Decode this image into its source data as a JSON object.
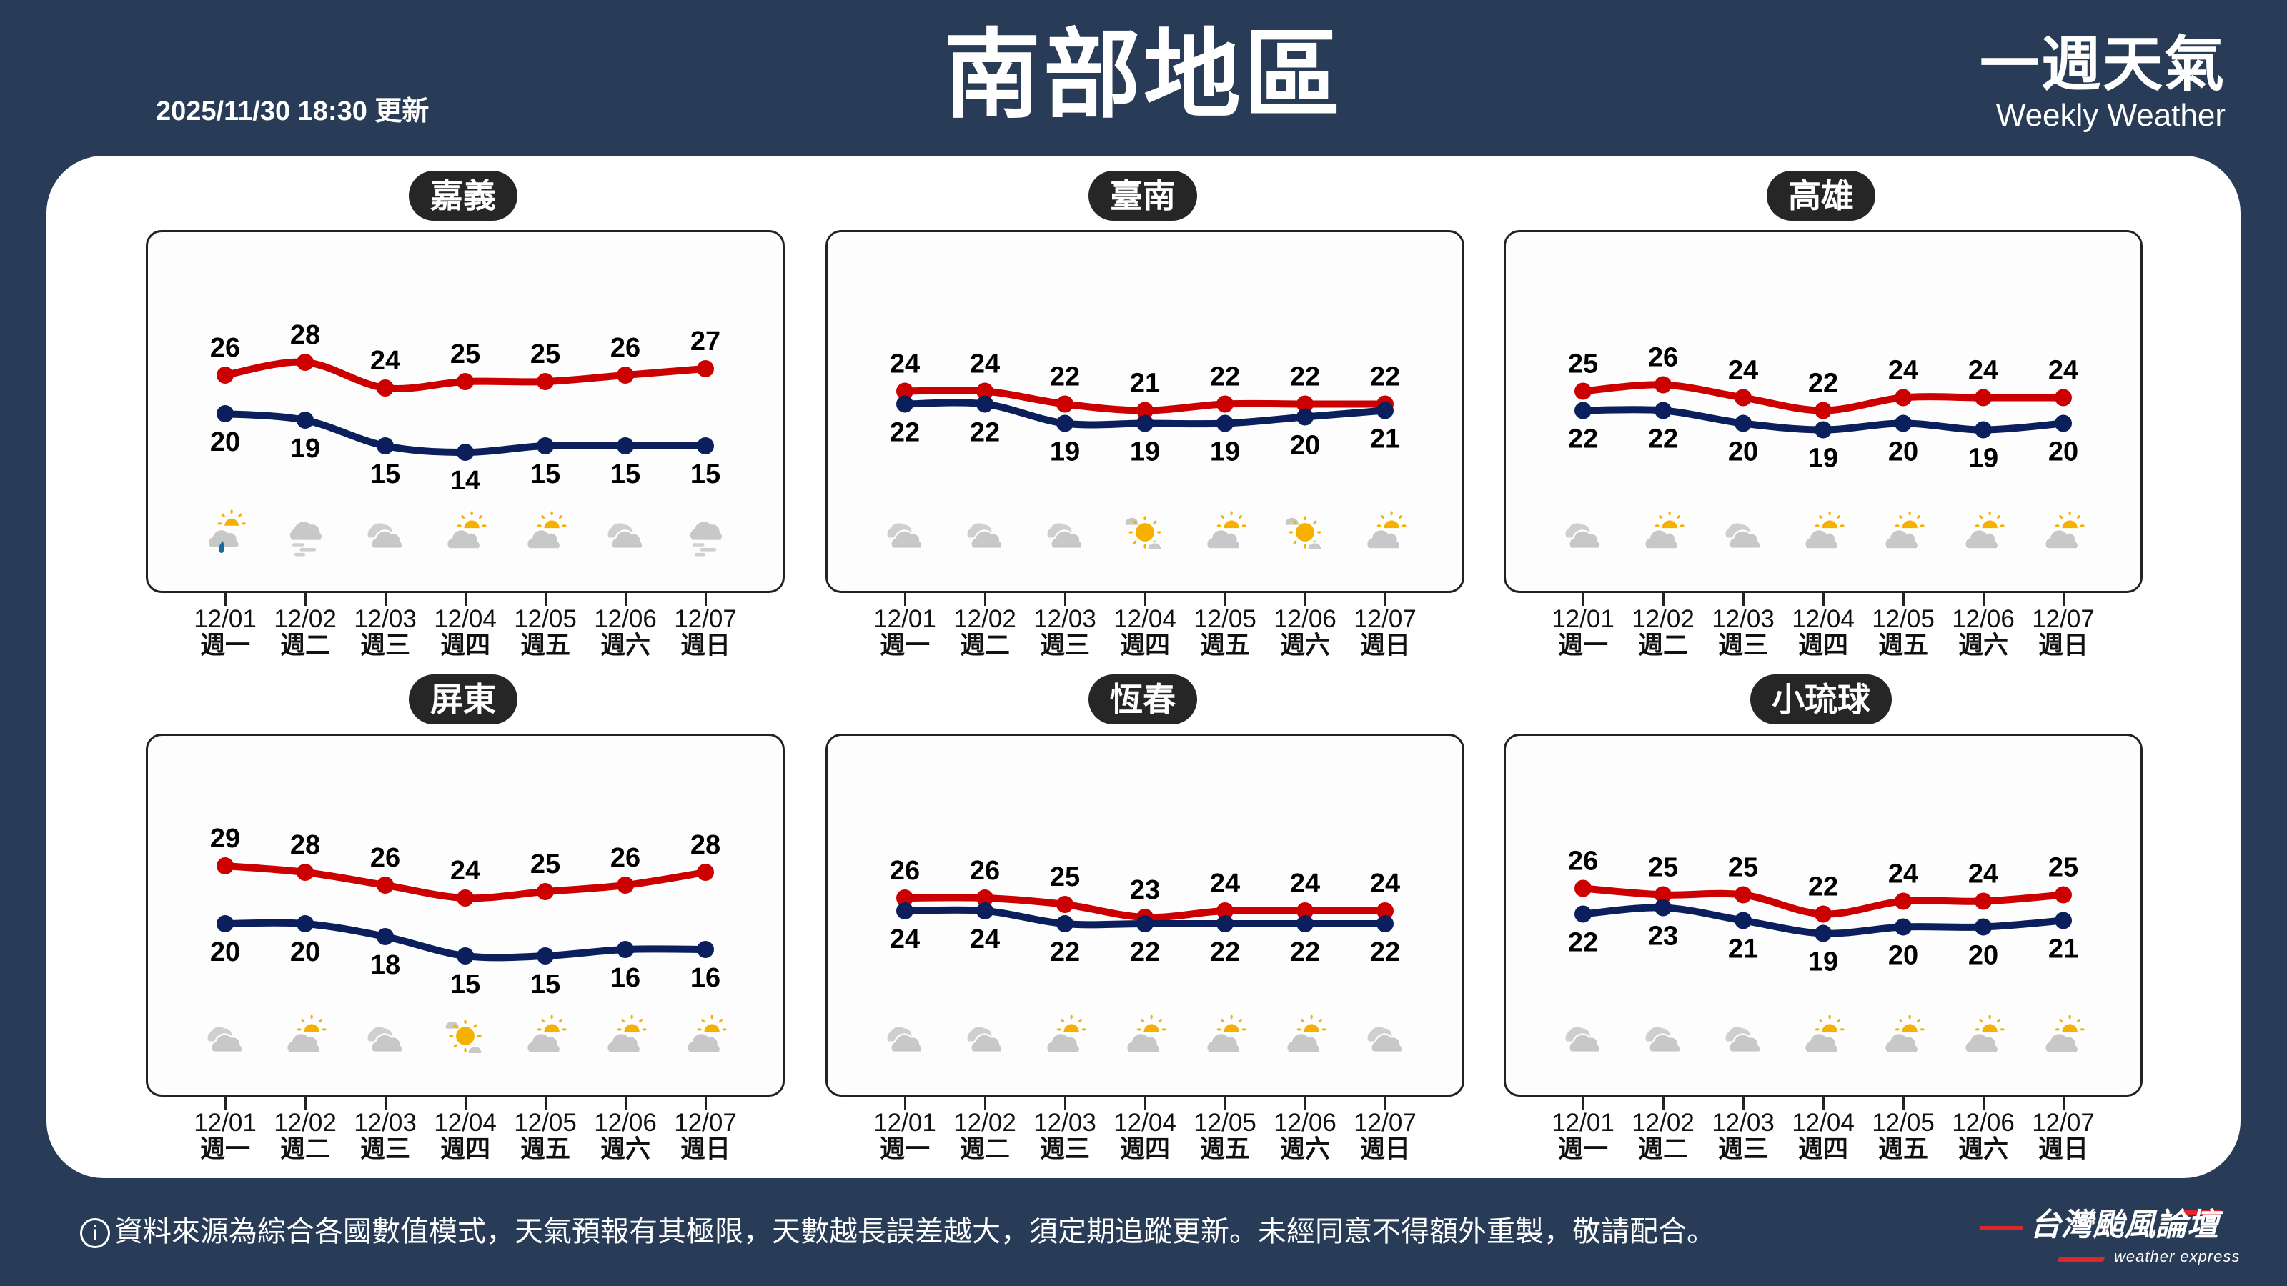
{
  "header": {
    "title": "南部地區",
    "updated": "2025/11/30 18:30 更新",
    "brand_zh": "一週天氣",
    "brand_en": "Weekly Weather"
  },
  "days": [
    {
      "date": "12/01",
      "weekday": "週一"
    },
    {
      "date": "12/02",
      "weekday": "週二"
    },
    {
      "date": "12/03",
      "weekday": "週三"
    },
    {
      "date": "12/04",
      "weekday": "週四"
    },
    {
      "date": "12/05",
      "weekday": "週五"
    },
    {
      "date": "12/06",
      "weekday": "週六"
    },
    {
      "date": "12/07",
      "weekday": "週日"
    }
  ],
  "colors": {
    "background": "#293c57",
    "high": "#cc0000",
    "low": "#0b1f5c",
    "cloud": "#c8c8c8",
    "sun": "#f5b000",
    "rain": "#1a6aa0"
  },
  "regions": [
    {
      "name": "嘉義",
      "high": [
        26,
        28,
        24,
        25,
        25,
        26,
        27
      ],
      "low": [
        20,
        19,
        15,
        14,
        15,
        15,
        15
      ],
      "icons": [
        "rain-partly-cloudy",
        "fog",
        "cloudy",
        "partly-cloudy",
        "partly-cloudy",
        "cloudy",
        "fog"
      ]
    },
    {
      "name": "臺南",
      "high": [
        24,
        24,
        22,
        21,
        22,
        22,
        22
      ],
      "low": [
        22,
        22,
        19,
        19,
        19,
        20,
        21
      ],
      "icons": [
        "cloudy",
        "cloudy",
        "cloudy",
        "sunny-cloud",
        "partly-cloudy",
        "sunny-cloud",
        "partly-cloudy"
      ]
    },
    {
      "name": "高雄",
      "high": [
        25,
        26,
        24,
        22,
        24,
        24,
        24
      ],
      "low": [
        22,
        22,
        20,
        19,
        20,
        19,
        20
      ],
      "icons": [
        "cloudy",
        "partly-cloudy",
        "cloudy",
        "partly-cloudy",
        "partly-cloudy",
        "partly-cloudy",
        "partly-cloudy"
      ]
    },
    {
      "name": "屏東",
      "high": [
        29,
        28,
        26,
        24,
        25,
        26,
        28
      ],
      "low": [
        20,
        20,
        18,
        15,
        15,
        16,
        16
      ],
      "icons": [
        "cloudy",
        "partly-cloudy",
        "cloudy",
        "sunny-cloud",
        "partly-cloudy",
        "partly-cloudy",
        "partly-cloudy"
      ]
    },
    {
      "name": "恆春",
      "high": [
        26,
        26,
        25,
        23,
        24,
        24,
        24
      ],
      "low": [
        24,
        24,
        22,
        22,
        22,
        22,
        22
      ],
      "icons": [
        "cloudy",
        "cloudy",
        "partly-cloudy",
        "partly-cloudy",
        "partly-cloudy",
        "partly-cloudy",
        "cloudy"
      ]
    },
    {
      "name": "小琉球",
      "high": [
        26,
        25,
        25,
        22,
        24,
        24,
        25
      ],
      "low": [
        22,
        23,
        21,
        19,
        20,
        20,
        21
      ],
      "icons": [
        "cloudy",
        "cloudy",
        "cloudy",
        "partly-cloudy",
        "partly-cloudy",
        "partly-cloudy",
        "partly-cloudy"
      ]
    }
  ],
  "footer": {
    "info_icon": "i",
    "notice": "資料來源為綜合各國數值模式，天氣預報有其極限，天數越長誤差越大，須定期追蹤更新。未經同意不得額外重製，敬請配合。",
    "logo_zh": "台灣颱風論壇",
    "logo_en": "weather express"
  }
}
